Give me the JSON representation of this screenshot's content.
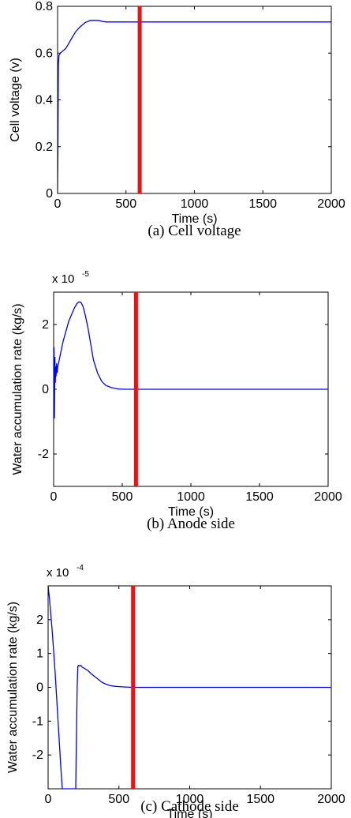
{
  "chart_data": [
    {
      "type": "line",
      "caption": "(a) Cell voltage",
      "xlabel": "Time (s)",
      "ylabel": "Cell voltage (v)",
      "xlim": [
        0,
        2000
      ],
      "ylim": [
        0,
        0.8
      ],
      "xticks": [
        "0",
        "500",
        "1000",
        "1500",
        "2000"
      ],
      "xtick_values": [
        0,
        500,
        1000,
        1500,
        2000
      ],
      "yticks": [
        "0",
        "0.2",
        "0.4",
        "0.6",
        "0.8"
      ],
      "ytick_values": [
        0,
        0.2,
        0.4,
        0.6,
        0.8
      ],
      "multiplier": null,
      "series": [
        {
          "color": "#0000ff",
          "x": [
            0,
            3,
            6,
            10,
            20,
            40,
            60,
            80,
            100,
            130,
            160,
            200,
            240,
            270,
            300,
            330,
            360,
            400,
            500,
            600,
            800,
            1000,
            1500,
            2000
          ],
          "y": [
            0.0,
            0.2,
            0.55,
            0.59,
            0.6,
            0.61,
            0.62,
            0.64,
            0.66,
            0.69,
            0.71,
            0.73,
            0.74,
            0.74,
            0.74,
            0.735,
            0.733,
            0.733,
            0.733,
            0.733,
            0.733,
            0.733,
            0.733,
            0.733
          ]
        }
      ],
      "vline": {
        "x": 600,
        "color": "#ee1111"
      }
    },
    {
      "type": "line",
      "caption": "(b) Anode side",
      "xlabel": "Time (s)",
      "ylabel": "Water accumulation rate (kg/s)",
      "xlim": [
        0,
        2000
      ],
      "ylim": [
        -3,
        3
      ],
      "xticks": [
        "0",
        "500",
        "1000",
        "1500",
        "2000"
      ],
      "xtick_values": [
        0,
        500,
        1000,
        1500,
        2000
      ],
      "yticks": [
        "-2",
        "0",
        "2"
      ],
      "ytick_values": [
        -2,
        0,
        2
      ],
      "multiplier": {
        "base": "x 10",
        "exp": "-5"
      },
      "series": [
        {
          "color": "#0000ff",
          "x": [
            0,
            3,
            6,
            9,
            12,
            15,
            18,
            22,
            26,
            30,
            40,
            55,
            70,
            90,
            110,
            130,
            150,
            170,
            185,
            200,
            215,
            230,
            250,
            270,
            290,
            320,
            350,
            380,
            420,
            470,
            520,
            600,
            800,
            1000,
            1500,
            2000
          ],
          "y": [
            0,
            1.3,
            -0.9,
            1.0,
            0.2,
            0.7,
            0.4,
            0.8,
            0.5,
            0.7,
            0.9,
            1.2,
            1.5,
            1.8,
            2.1,
            2.3,
            2.5,
            2.65,
            2.7,
            2.68,
            2.55,
            2.3,
            1.9,
            1.4,
            0.9,
            0.5,
            0.25,
            0.12,
            0.05,
            0.01,
            0,
            0,
            0,
            0,
            0,
            0
          ]
        }
      ],
      "vline": {
        "x": 600,
        "color": "#ee1111"
      }
    },
    {
      "type": "line",
      "caption": "(c) Cathode side",
      "xlabel": "Time (s)",
      "ylabel": "Water accumulation rate (kg/s)",
      "xlim": [
        0,
        2000
      ],
      "ylim": [
        -3,
        3
      ],
      "xticks": [
        "0",
        "500",
        "1000",
        "1500",
        "2000"
      ],
      "xtick_values": [
        0,
        500,
        1000,
        1500,
        2000
      ],
      "yticks": [
        "-2",
        "-1",
        "0",
        "1",
        "2"
      ],
      "ytick_values": [
        -2,
        -1,
        0,
        1,
        2
      ],
      "multiplier": {
        "base": "x 10",
        "exp": "-4"
      },
      "series": [
        {
          "color": "#0000ff",
          "x": [
            0,
            10,
            20,
            30,
            40,
            50,
            60,
            70,
            80,
            90,
            100,
            110,
            120,
            140,
            170,
            195,
            200,
            205,
            210,
            215,
            220,
            230,
            240,
            260,
            280,
            300,
            320,
            350,
            380,
            410,
            440,
            470,
            500,
            550,
            600,
            700,
            800,
            1000,
            1500,
            2000
          ],
          "y": [
            3.0,
            2.6,
            2.1,
            1.6,
            1.0,
            0.4,
            -0.3,
            -1.0,
            -1.7,
            -2.4,
            -3.0,
            -3.0,
            -3.0,
            -3.0,
            -3.0,
            -3.0,
            -1.5,
            0.0,
            0.62,
            0.65,
            0.63,
            0.65,
            0.6,
            0.55,
            0.5,
            0.42,
            0.35,
            0.25,
            0.15,
            0.09,
            0.05,
            0.03,
            0.02,
            0.01,
            0.0,
            0.0,
            0.0,
            0.0,
            0.0,
            0.0
          ]
        }
      ],
      "vline": {
        "x": 600,
        "color": "#ee1111"
      }
    }
  ]
}
